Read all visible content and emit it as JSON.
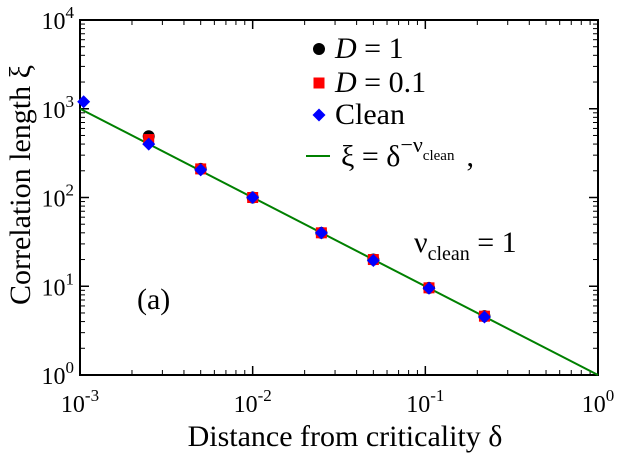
{
  "chart_data": {
    "type": "scatter",
    "panel_label": "(a)",
    "xlabel": "Distance from criticality δ",
    "ylabel": "Correlation length ξ",
    "x_scale": "log",
    "y_scale": "log",
    "xlim": [
      0.001,
      1
    ],
    "ylim": [
      1,
      10000
    ],
    "x_ticks": [
      {
        "value": 0.001,
        "base": "10",
        "exp": "-3"
      },
      {
        "value": 0.01,
        "base": "10",
        "exp": "-2"
      },
      {
        "value": 0.1,
        "base": "10",
        "exp": "-1"
      },
      {
        "value": 1,
        "base": "10",
        "exp": "0"
      }
    ],
    "y_ticks": [
      {
        "value": 1,
        "base": "10",
        "exp": "0"
      },
      {
        "value": 10,
        "base": "10",
        "exp": "1"
      },
      {
        "value": 100,
        "base": "10",
        "exp": "2"
      },
      {
        "value": 1000,
        "base": "10",
        "exp": "3"
      },
      {
        "value": 10000,
        "base": "10",
        "exp": "4"
      }
    ],
    "series": [
      {
        "name": "D = 1",
        "label_var": "D",
        "label_rest": " = 1",
        "marker": "circle",
        "color": "#000000",
        "x": [
          0.0025,
          0.005,
          0.01,
          0.025,
          0.05,
          0.105,
          0.22
        ],
        "y": [
          490,
          210,
          100,
          40,
          20,
          9.6,
          4.6
        ]
      },
      {
        "name": "D = 0.1",
        "label_var": "D",
        "label_rest": " = 0.1",
        "marker": "square",
        "color": "#ff0000",
        "x": [
          0.0025,
          0.005,
          0.01,
          0.025,
          0.05,
          0.105,
          0.22
        ],
        "y": [
          450,
          210,
          100,
          40,
          20,
          9.6,
          4.6
        ]
      },
      {
        "name": "Clean",
        "label_var": "",
        "label_rest": "Clean",
        "marker": "diamond",
        "color": "#0000ff",
        "x": [
          0.00105,
          0.0025,
          0.005,
          0.01,
          0.025,
          0.05,
          0.105,
          0.22
        ],
        "y": [
          1200,
          400,
          205,
          100,
          40,
          19.5,
          9.5,
          4.5
        ]
      }
    ],
    "fit_line": {
      "name": "ξ = δ^(-ν_clean)",
      "color": "#008000",
      "exponent": -1,
      "x": [
        0.001,
        1
      ],
      "label_lhs": "ξ = δ",
      "label_sup": "−ν",
      "label_supsub": "clean",
      "label_tail": ","
    },
    "annotation": {
      "symbol": "ν",
      "sub": "clean",
      "rest": " = 1"
    }
  }
}
